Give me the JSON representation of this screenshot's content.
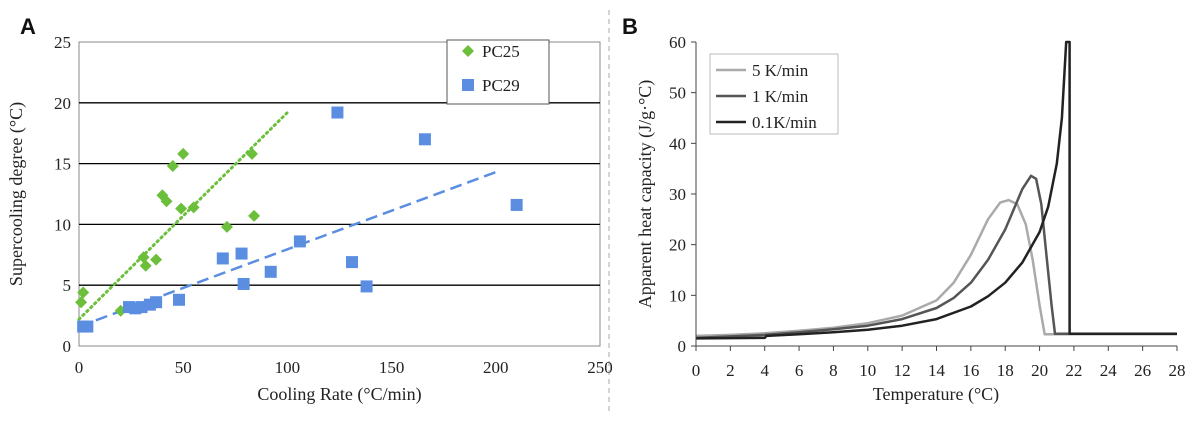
{
  "chart_data": [
    {
      "panel": "A",
      "type": "scatter",
      "xlabel": "Cooling Rate (°C/min)",
      "ylabel": "Supercooling degree (°C)",
      "xlim": [
        0,
        250
      ],
      "ylim": [
        0,
        25
      ],
      "xticks": [
        "0",
        "50",
        "100",
        "150",
        "200",
        "250"
      ],
      "yticks": [
        "0",
        "5",
        "10",
        "15",
        "20",
        "25"
      ],
      "gridlines_y": [
        5,
        10,
        15,
        20
      ],
      "legend": [
        "PC25",
        "PC29"
      ],
      "series": [
        {
          "name": "PC25",
          "marker": "diamond",
          "color": "#6cbf3a",
          "points": [
            [
              1,
              3.6
            ],
            [
              2,
              4.4
            ],
            [
              20,
              2.9
            ],
            [
              31,
              7.3
            ],
            [
              32,
              6.6
            ],
            [
              37,
              7.1
            ],
            [
              40,
              12.4
            ],
            [
              42,
              11.9
            ],
            [
              45,
              14.8
            ],
            [
              49,
              11.3
            ],
            [
              50,
              15.8
            ],
            [
              55,
              11.4
            ],
            [
              71,
              9.8
            ],
            [
              83,
              15.8
            ],
            [
              84,
              10.7
            ]
          ],
          "trend": {
            "style": "dotted",
            "from": [
              0,
              2.2
            ],
            "to": [
              100,
              19.2
            ]
          }
        },
        {
          "name": "PC29",
          "marker": "square",
          "color": "#5b8ee0",
          "points": [
            [
              2,
              1.6
            ],
            [
              4,
              1.6
            ],
            [
              24,
              3.2
            ],
            [
              27,
              3.1
            ],
            [
              30,
              3.2
            ],
            [
              34,
              3.4
            ],
            [
              37,
              3.6
            ],
            [
              48,
              3.8
            ],
            [
              69,
              7.2
            ],
            [
              78,
              7.6
            ],
            [
              79,
              5.1
            ],
            [
              92,
              6.1
            ],
            [
              106,
              8.6
            ],
            [
              124,
              19.2
            ],
            [
              131,
              6.9
            ],
            [
              138,
              4.9
            ],
            [
              166,
              17.0
            ],
            [
              210,
              11.6
            ]
          ],
          "trend": {
            "style": "dashed",
            "from": [
              0,
              1.6
            ],
            "to": [
              200,
              14.3
            ]
          }
        }
      ]
    },
    {
      "panel": "B",
      "type": "line",
      "xlabel": "Temperature (°C)",
      "ylabel": "Apparent heat capacity (J/g·°C)",
      "xlim": [
        0,
        28
      ],
      "ylim": [
        0,
        60
      ],
      "xticks": [
        "0",
        "2",
        "4",
        "6",
        "8",
        "10",
        "12",
        "14",
        "16",
        "18",
        "20",
        "22",
        "24",
        "26",
        "28"
      ],
      "yticks": [
        "0",
        "10",
        "20",
        "30",
        "40",
        "50",
        "60"
      ],
      "legend": [
        "5 K/min",
        "1 K/min",
        "0.1K/min"
      ],
      "series": [
        {
          "name": "5 K/min",
          "color": "#aaaaaa",
          "points": [
            [
              0,
              2.0
            ],
            [
              2,
              2.2
            ],
            [
              4,
              2.5
            ],
            [
              6,
              3.0
            ],
            [
              8,
              3.6
            ],
            [
              10,
              4.5
            ],
            [
              12,
              6.0
            ],
            [
              14,
              9.0
            ],
            [
              15,
              12.5
            ],
            [
              16,
              18.0
            ],
            [
              17,
              25.0
            ],
            [
              17.7,
              28.3
            ],
            [
              18.2,
              28.8
            ],
            [
              18.7,
              28.0
            ],
            [
              19.2,
              24.0
            ],
            [
              19.6,
              17.0
            ],
            [
              20.0,
              8.0
            ],
            [
              20.3,
              2.3
            ],
            [
              21,
              2.3
            ],
            [
              28,
              2.3
            ]
          ]
        },
        {
          "name": "1 K/min",
          "color": "#555555",
          "points": [
            [
              0,
              1.6
            ],
            [
              2,
              1.9
            ],
            [
              4,
              2.2
            ],
            [
              6,
              2.7
            ],
            [
              8,
              3.3
            ],
            [
              10,
              4.0
            ],
            [
              12,
              5.3
            ],
            [
              14,
              7.5
            ],
            [
              15,
              9.5
            ],
            [
              16,
              12.5
            ],
            [
              17,
              17.0
            ],
            [
              18,
              23.0
            ],
            [
              19,
              31.0
            ],
            [
              19.5,
              33.6
            ],
            [
              19.8,
              33.0
            ],
            [
              20.1,
              28.0
            ],
            [
              20.4,
              18.0
            ],
            [
              20.7,
              8.0
            ],
            [
              20.9,
              2.4
            ],
            [
              21.5,
              2.4
            ],
            [
              28,
              2.4
            ]
          ]
        },
        {
          "name": "0.1K/min",
          "color": "#222222",
          "points": [
            [
              0,
              1.5
            ],
            [
              4,
              1.6
            ],
            [
              4.1,
              2.0
            ],
            [
              6,
              2.3
            ],
            [
              8,
              2.7
            ],
            [
              10,
              3.2
            ],
            [
              12,
              4.0
            ],
            [
              14,
              5.3
            ],
            [
              16,
              7.8
            ],
            [
              17,
              9.8
            ],
            [
              18,
              12.5
            ],
            [
              19,
              16.5
            ],
            [
              20,
              22.5
            ],
            [
              20.5,
              27.5
            ],
            [
              21,
              36.0
            ],
            [
              21.3,
              45.0
            ],
            [
              21.55,
              60.0
            ],
            [
              21.75,
              60.0
            ],
            [
              21.75,
              2.4
            ],
            [
              28,
              2.4
            ]
          ]
        }
      ]
    }
  ]
}
